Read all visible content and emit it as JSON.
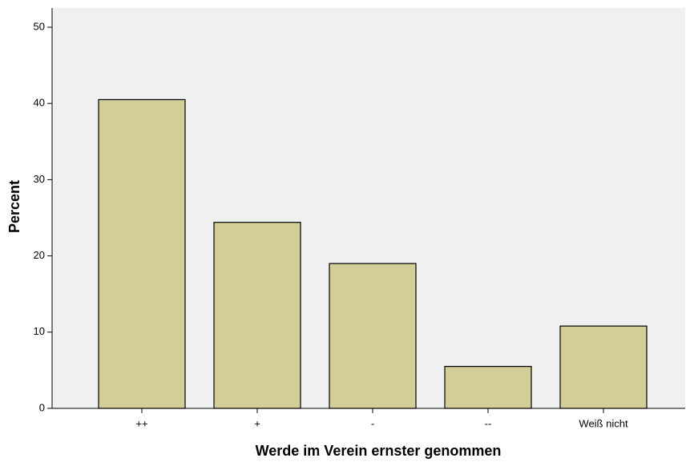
{
  "chart_data": {
    "type": "bar",
    "x_label": "Werde im Verein ernster genommen",
    "y_label": "Percent",
    "categories": [
      "++",
      "+",
      "-",
      "--",
      "Weiß nicht"
    ],
    "values": [
      40.5,
      24.4,
      19.0,
      5.5,
      10.8
    ],
    "color": "#d3ce97",
    "ylim": [
      0,
      50
    ],
    "yticks": [
      0,
      10,
      20,
      30,
      40,
      50
    ],
    "grid": false
  }
}
